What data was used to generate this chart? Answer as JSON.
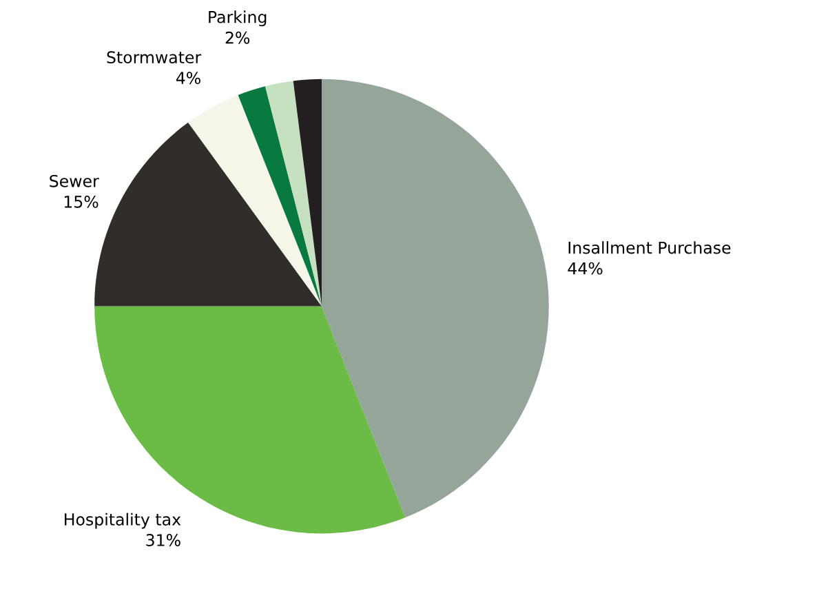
{
  "chart_data": {
    "type": "pie",
    "categories": [
      "Insallment Purchase",
      "Hospitality tax",
      "Sewer",
      "Stormwater",
      "Parking",
      null,
      null
    ],
    "values": [
      44,
      31,
      15,
      4,
      2,
      2,
      2
    ],
    "value_labels": [
      "44%",
      "31%",
      "15%",
      "4%",
      "2%",
      null,
      null
    ],
    "colors": [
      "#95a59a",
      "#6bbb47",
      "#302d2a",
      "#f5f5e9",
      "#087a3f",
      "#c6e1bf",
      "#231f20"
    ]
  }
}
